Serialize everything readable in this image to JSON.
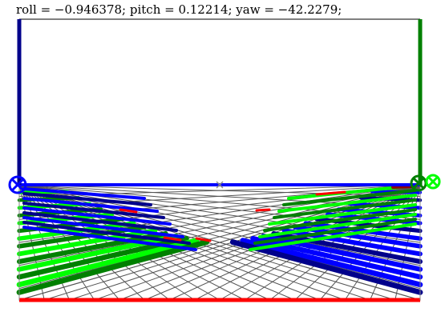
{
  "readout": {
    "text": "roll = −0.946378; pitch = 0.12214; yaw = −42.2279;",
    "roll": -0.946378,
    "pitch": 0.12214,
    "yaw": -42.2279
  },
  "colors": {
    "left_edge": "#00008b",
    "right_edge": "#008000",
    "bottom_edge": "#ff0000",
    "horizon_line": "#0000ff",
    "grid": "#555555",
    "stripe_blue": "#0000ff",
    "stripe_navy": "#00008b",
    "stripe_green": "#008000",
    "stripe_lime": "#00ff00",
    "stripe_red": "#ff0000",
    "stripe_maroon": "#8b0000",
    "center_marker": "#888888"
  },
  "icons": {
    "left_marker": "circle-cross-icon",
    "right_marker": "circle-cross-icon",
    "center_marker": "cross-icon"
  }
}
